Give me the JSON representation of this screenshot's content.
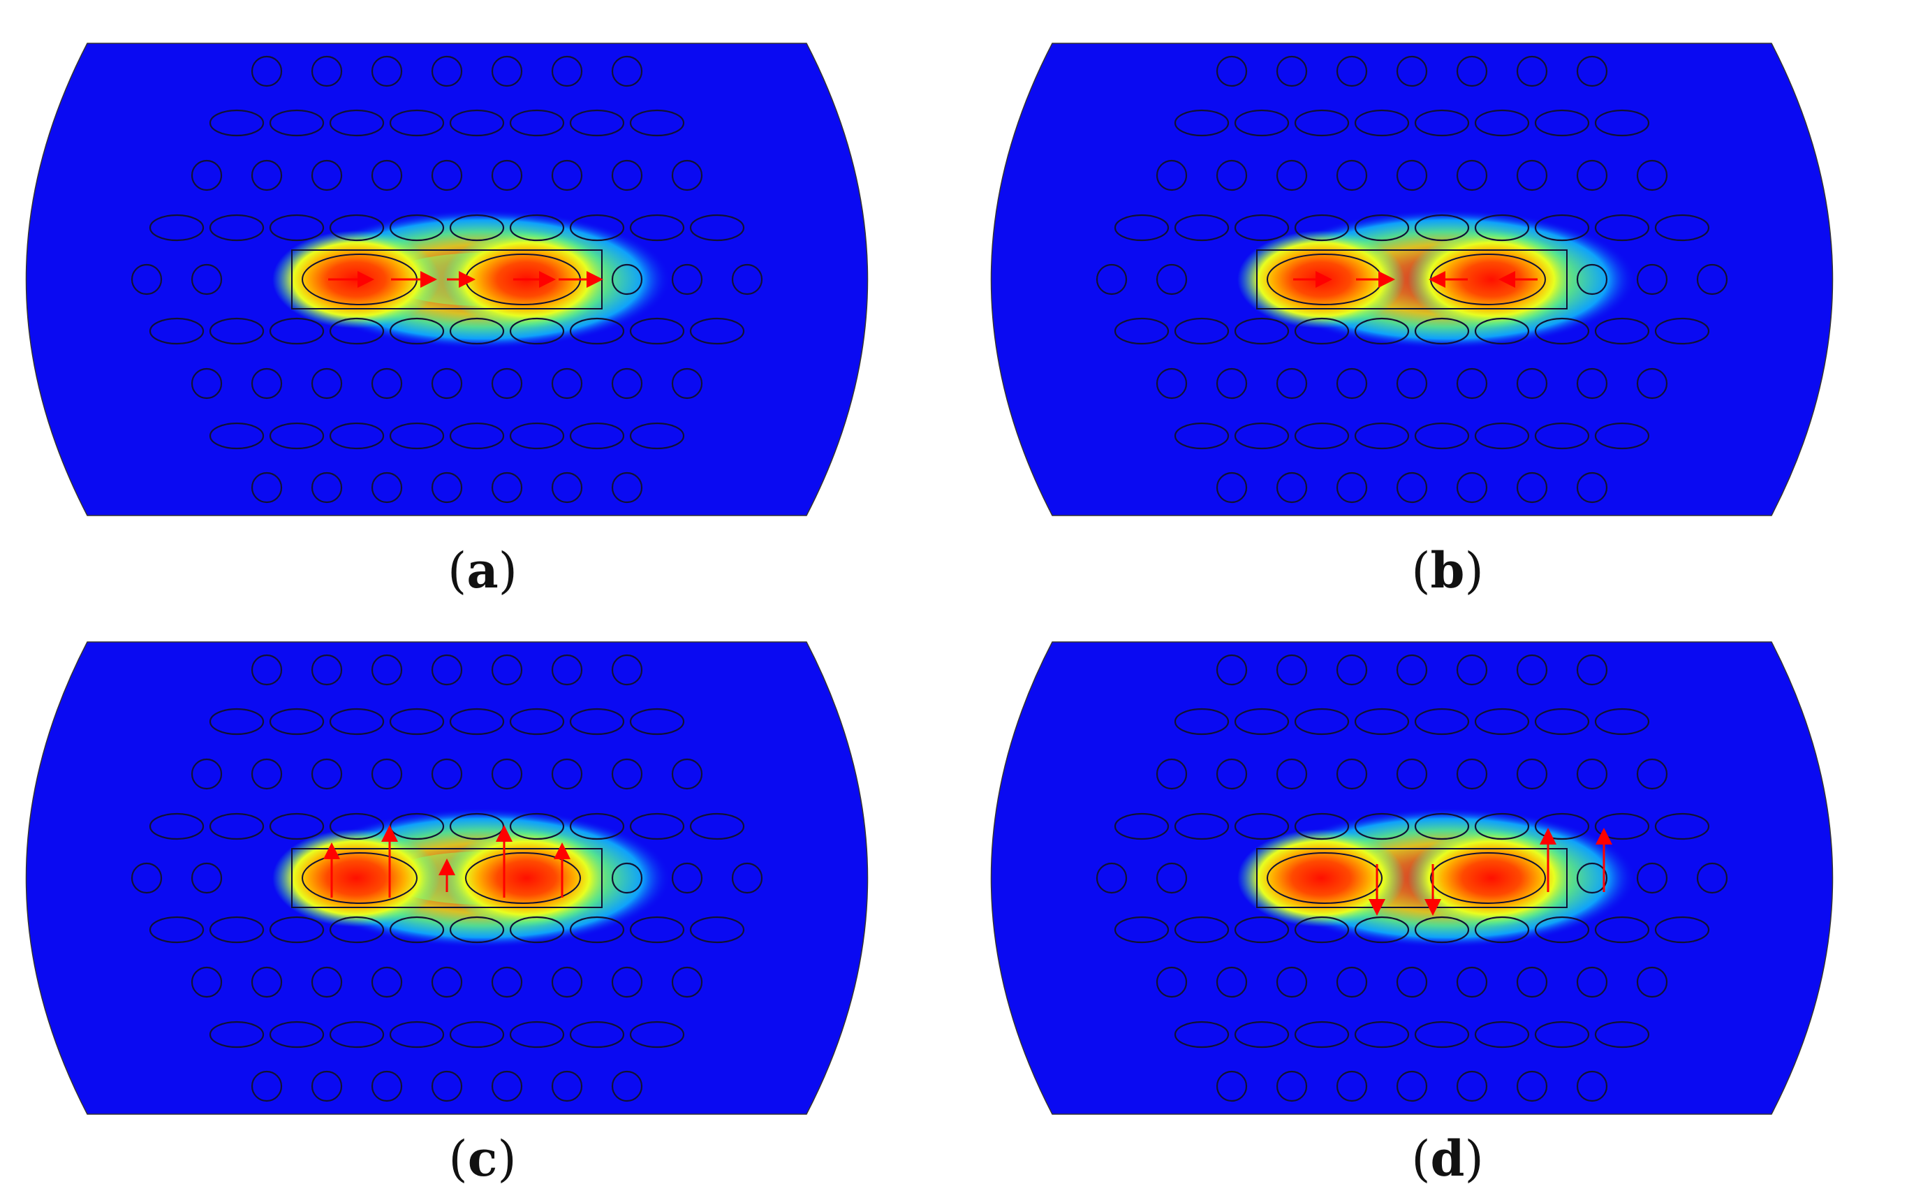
{
  "panels": [
    {
      "label": "a",
      "arrows": "horizontal-same"
    },
    {
      "label": "b",
      "arrows": "horizontal-converging"
    },
    {
      "label": "c",
      "arrows": "vertical-up"
    },
    {
      "label": "d",
      "arrows": "vertical-mixed"
    }
  ],
  "colors": {
    "background": "#0a0af2",
    "field_hot": "#ff1a00",
    "arrow": "#ff0000",
    "outline": "#111133"
  }
}
